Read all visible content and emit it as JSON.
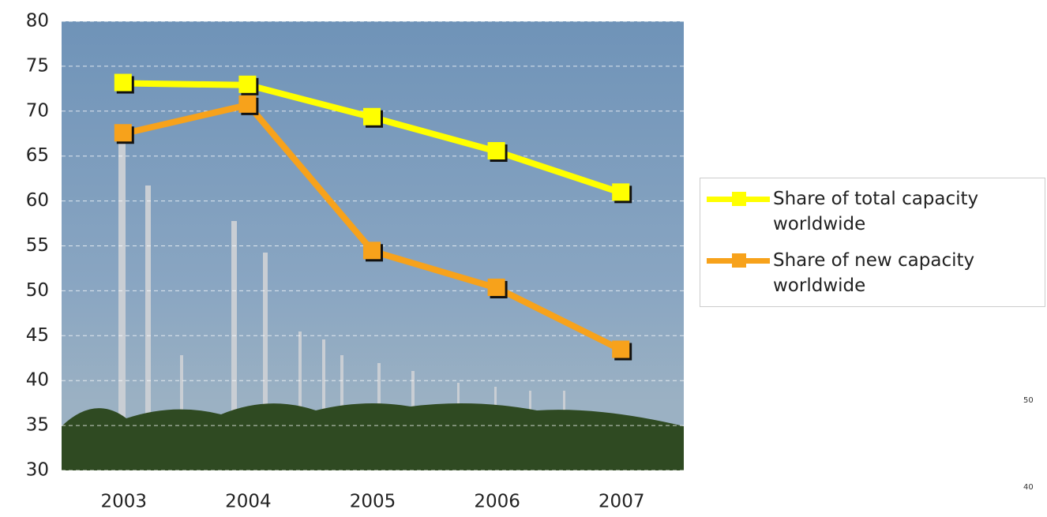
{
  "chart_data": {
    "type": "line",
    "categories": [
      "2003",
      "2004",
      "2005",
      "2006",
      "2007"
    ],
    "series": [
      {
        "name": "Share of total capacity worldwide",
        "color": "#ffff00",
        "values": [
          73.1,
          72.9,
          69.3,
          65.5,
          60.9
        ]
      },
      {
        "name": "Share of new capacity worldwide",
        "color": "#f7a21b",
        "values": [
          67.5,
          70.7,
          54.4,
          50.3,
          43.4
        ]
      }
    ],
    "ylim": [
      30,
      80
    ],
    "yticks": [
      30,
      35,
      40,
      45,
      50,
      55,
      60,
      65,
      70,
      75,
      80
    ],
    "grid": true,
    "legend": "right"
  },
  "edge_fragment": {
    "labels": [
      "50",
      "40"
    ]
  }
}
